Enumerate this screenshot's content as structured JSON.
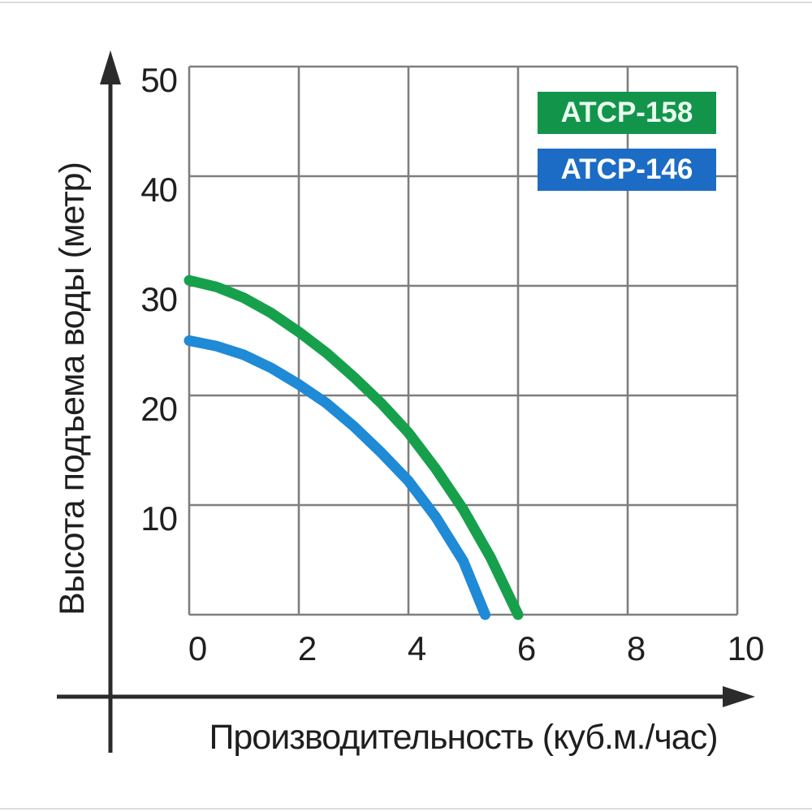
{
  "chart_data": {
    "type": "line",
    "title": "",
    "xlabel": "Производительность (куб.м./час)",
    "ylabel": "Высота подъема воды (метр)",
    "xlim": [
      0,
      10
    ],
    "ylim": [
      0,
      50
    ],
    "x_ticks": [
      "0",
      "2",
      "4",
      "6",
      "8",
      "10"
    ],
    "y_ticks": [
      "50",
      "40",
      "30",
      "20",
      "10"
    ],
    "grid": true,
    "legend_position": "top-right",
    "series": [
      {
        "name": "ATCP-158",
        "color": "#17a04c",
        "points": [
          [
            0,
            30.5
          ],
          [
            0.5,
            29.9
          ],
          [
            1,
            28.9
          ],
          [
            1.5,
            27.5
          ],
          [
            2,
            25.8
          ],
          [
            2.5,
            23.9
          ],
          [
            3,
            21.7
          ],
          [
            3.5,
            19.3
          ],
          [
            4,
            16.6
          ],
          [
            4.5,
            13.3
          ],
          [
            5,
            9.6
          ],
          [
            5.5,
            5.2
          ],
          [
            6,
            0
          ]
        ]
      },
      {
        "name": "ATCP-146",
        "color": "#1f8ad6",
        "points": [
          [
            0,
            25
          ],
          [
            0.5,
            24.5
          ],
          [
            1,
            23.7
          ],
          [
            1.5,
            22.5
          ],
          [
            2,
            21
          ],
          [
            2.5,
            19.3
          ],
          [
            3,
            17.2
          ],
          [
            3.5,
            14.8
          ],
          [
            4,
            12.2
          ],
          [
            4.5,
            8.9
          ],
          [
            5,
            4.9
          ],
          [
            5.4,
            0
          ]
        ]
      }
    ]
  },
  "legend": {
    "items": [
      {
        "label": "ATCP-158",
        "color": "#12954a",
        "text_color": "#eafaf0"
      },
      {
        "label": "ATCP-146",
        "color": "#1c6cc6",
        "text_color": "#ffffff"
      }
    ]
  },
  "colors": {
    "grid": "#7e7e7e",
    "axis": "#2b2b2b",
    "text": "#1f1f1f",
    "background": "#ffffff"
  }
}
